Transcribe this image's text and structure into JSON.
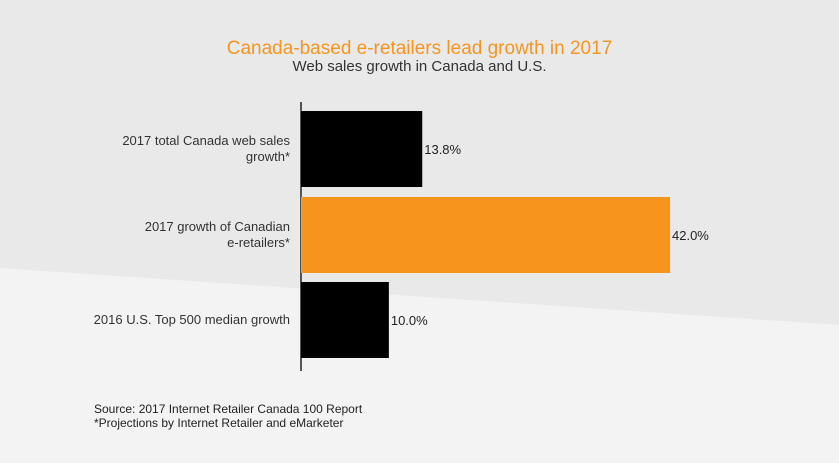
{
  "header": {
    "title": "Canada-based e-retailers lead growth in 2017",
    "subtitle": "Web sales growth in Canada and U.S."
  },
  "footer": {
    "source": "Source: 2017 Internet Retailer Canada 100 Report",
    "note": "*Projections by Internet Retailer and eMarketer"
  },
  "colors": {
    "background_top": "#e9e9e9",
    "background_bottom": "#f3f3f3",
    "bar_default": "#000000",
    "bar_highlight": "#f7941d",
    "title": "#f39621",
    "text": "#333333"
  },
  "chart_data": {
    "type": "bar",
    "orientation": "horizontal",
    "categories": [
      [
        "2017 total Canada web sales",
        "growth*"
      ],
      [
        "2017 growth of Canadian",
        "e-retailers*"
      ],
      [
        "2016 U.S. Top 500 median growth"
      ]
    ],
    "values": [
      13.8,
      42.0,
      10.0
    ],
    "value_labels": [
      "13.8%",
      "42.0%",
      "10.0%"
    ],
    "highlight_index": 1,
    "xlim": [
      0,
      42.0
    ],
    "grid": false,
    "legend": "none"
  }
}
